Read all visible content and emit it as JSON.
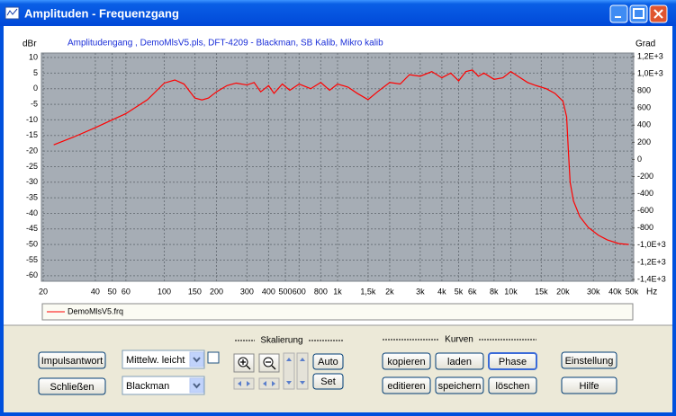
{
  "window": {
    "title": "Amplituden - Frequenzgang"
  },
  "chart_data": {
    "type": "line",
    "subtitle": "Amplitudengang , DemoMlsV5.pls, DFT-4209 - Blackman, SB Kalib, Mikro kalib",
    "y_label": "dBr",
    "y2_label": "Grad",
    "x_unit": "Hz",
    "x_scale": "log",
    "grid": true,
    "legend": "bottom",
    "xlim": [
      20,
      50000
    ],
    "xticks": [
      20,
      40,
      50,
      60,
      100,
      150,
      200,
      300,
      400,
      500,
      600,
      800,
      {
        "value": 1000,
        "label": "1k"
      },
      {
        "value": 1500,
        "label": "1,5k"
      },
      {
        "value": 2000,
        "label": "2k"
      },
      {
        "value": 3000,
        "label": "3k"
      },
      {
        "value": 4000,
        "label": "4k"
      },
      {
        "value": 5000,
        "label": "5k"
      },
      {
        "value": 6000,
        "label": "6k"
      },
      {
        "value": 8000,
        "label": "8k"
      },
      {
        "value": 10000,
        "label": "10k"
      },
      {
        "value": 15000,
        "label": "15k"
      },
      {
        "value": 20000,
        "label": "20k"
      },
      {
        "value": 30000,
        "label": "30k"
      },
      {
        "value": 40000,
        "label": "40k"
      },
      {
        "value": 50000,
        "label": "50k"
      }
    ],
    "ylim": [
      -61.2,
      10.3
    ],
    "yticks": [
      10,
      5,
      0,
      -5,
      -10,
      -15,
      -20,
      -25,
      -30,
      -35,
      -40,
      -45,
      -50,
      -55,
      -60
    ],
    "y2lim": [
      -1400,
      1200
    ],
    "y2ticks": [
      {
        "value": 1200,
        "label": "1,2E+3"
      },
      {
        "value": 1000,
        "label": "1,0E+3"
      },
      800,
      600,
      400,
      200,
      0,
      -200,
      -400,
      -600,
      -800,
      {
        "value": -1000,
        "label": "-1,0E+3"
      },
      {
        "value": -1200,
        "label": "-1,2E+3"
      },
      {
        "value": -1400,
        "label": "-1,4E+3"
      }
    ],
    "x": [
      23,
      30,
      40,
      50,
      60,
      80,
      100,
      115,
      130,
      150,
      165,
      180,
      200,
      230,
      260,
      300,
      330,
      360,
      400,
      430,
      480,
      530,
      600,
      700,
      800,
      900,
      1000,
      1150,
      1300,
      1500,
      1700,
      2000,
      2300,
      2600,
      3000,
      3500,
      4000,
      4500,
      5000,
      5500,
      6000,
      6500,
      7000,
      8000,
      9000,
      10000,
      11000,
      12500,
      14000,
      16000,
      18000,
      20000,
      21000,
      21500,
      22000,
      23000,
      25000,
      28000,
      32000,
      36000,
      42000,
      48000
    ],
    "series": [
      {
        "name": "DemoMlsV5.frq",
        "color": "#ff0000",
        "values": [
          -18,
          -15.5,
          -12.5,
          -10,
          -8,
          -3.5,
          1.8,
          2.8,
          1.5,
          -3,
          -3.6,
          -3,
          -1,
          1,
          1.8,
          1.2,
          2,
          -1,
          1,
          -1.5,
          1.5,
          -0.5,
          1.5,
          0,
          2,
          -0.5,
          1.5,
          0.5,
          -1.5,
          -3.5,
          -1,
          2,
          1.5,
          4.5,
          4,
          5.5,
          3.5,
          5,
          2.5,
          5.5,
          6,
          4,
          5,
          3,
          3.5,
          5.5,
          4,
          2,
          1,
          0,
          -1.5,
          -4,
          -9,
          -20,
          -30,
          -36,
          -41,
          -44.5,
          -47,
          -48.5,
          -49.7,
          -50
        ]
      }
    ]
  },
  "controls": {
    "left_buttons": [
      "Impulsantwort",
      "Schließen"
    ],
    "selects": [
      "Mittelw. leicht",
      "Blackman"
    ],
    "groups": [
      "Skalierung",
      "Kurven"
    ],
    "scale_buttons": [
      "Auto",
      "Set"
    ],
    "curve_buttons": [
      "kopieren",
      "laden",
      "Phase",
      "editieren",
      "speichern",
      "löschen"
    ],
    "right_buttons": [
      "Einstellung",
      "Hilfe"
    ]
  }
}
